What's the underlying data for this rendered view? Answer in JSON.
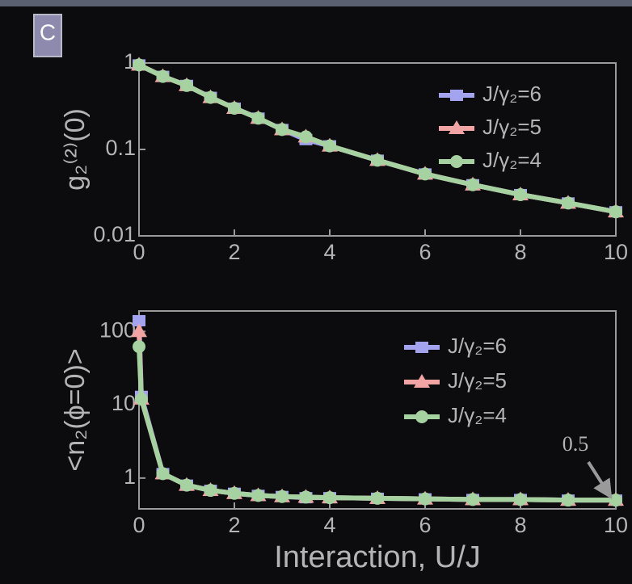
{
  "panel_label": "C",
  "chart_data": [
    {
      "type": "line",
      "ylabel": "g₂⁽²⁾(0)",
      "log_y": true,
      "grid": false,
      "legend": "upper right",
      "x": [
        0,
        0.5,
        1,
        1.5,
        2,
        2.5,
        3,
        3.5,
        4,
        5,
        6,
        7,
        8,
        9,
        10
      ],
      "xlim": [
        0,
        10
      ],
      "xticks": [
        0,
        2,
        4,
        6,
        8,
        10
      ],
      "ylim": [
        0.01,
        1
      ],
      "yticks": [
        0.01,
        0.1,
        1
      ],
      "series": [
        {
          "name": "J/γ₂=6",
          "color": "#a3a3f0",
          "marker": "square",
          "values": [
            0.95,
            0.7,
            0.55,
            0.4,
            0.3,
            0.23,
            0.17,
            0.13,
            0.11,
            0.075,
            0.052,
            0.039,
            0.03,
            0.024,
            0.019
          ]
        },
        {
          "name": "J/γ₂=5",
          "color": "#f2a3a3",
          "marker": "triangle",
          "values": [
            0.95,
            0.7,
            0.55,
            0.4,
            0.3,
            0.23,
            0.17,
            0.14,
            0.11,
            0.075,
            0.052,
            0.039,
            0.03,
            0.024,
            0.019
          ]
        },
        {
          "name": "J/γ₂=4",
          "color": "#a6d1a0",
          "marker": "circle",
          "values": [
            0.95,
            0.7,
            0.55,
            0.4,
            0.3,
            0.23,
            0.17,
            0.14,
            0.11,
            0.075,
            0.052,
            0.039,
            0.03,
            0.024,
            0.019
          ]
        }
      ]
    },
    {
      "type": "line",
      "ylabel": "<n₂(ϕ=0)>",
      "xlabel": "Interaction, U/J",
      "log_y": true,
      "grid": false,
      "legend": "upper right",
      "annotation": "0.5",
      "x": [
        0,
        0.05,
        0.5,
        1,
        1.5,
        2,
        2.5,
        3,
        3.5,
        4,
        5,
        6,
        7,
        8,
        9,
        10
      ],
      "xlim": [
        0,
        10
      ],
      "xticks": [
        0,
        2,
        4,
        6,
        8,
        10
      ],
      "ylim": [
        0.38,
        190
      ],
      "yticks": [
        1,
        10,
        100
      ],
      "series": [
        {
          "name": "J/γ₂=6",
          "color": "#a3a3f0",
          "marker": "square",
          "values": [
            140,
            13,
            1.15,
            0.8,
            0.68,
            0.62,
            0.58,
            0.56,
            0.54,
            0.54,
            0.53,
            0.52,
            0.51,
            0.51,
            0.5,
            0.5
          ]
        },
        {
          "name": "J/γ₂=5",
          "color": "#f2a3a3",
          "marker": "triangle",
          "values": [
            100,
            12,
            1.15,
            0.8,
            0.68,
            0.62,
            0.58,
            0.56,
            0.55,
            0.54,
            0.53,
            0.52,
            0.51,
            0.51,
            0.5,
            0.5
          ]
        },
        {
          "name": "J/γ₂=4",
          "color": "#a6d1a0",
          "marker": "circle",
          "values": [
            62,
            12,
            1.15,
            0.8,
            0.68,
            0.62,
            0.58,
            0.56,
            0.55,
            0.54,
            0.53,
            0.52,
            0.51,
            0.51,
            0.5,
            0.5
          ]
        }
      ]
    }
  ]
}
